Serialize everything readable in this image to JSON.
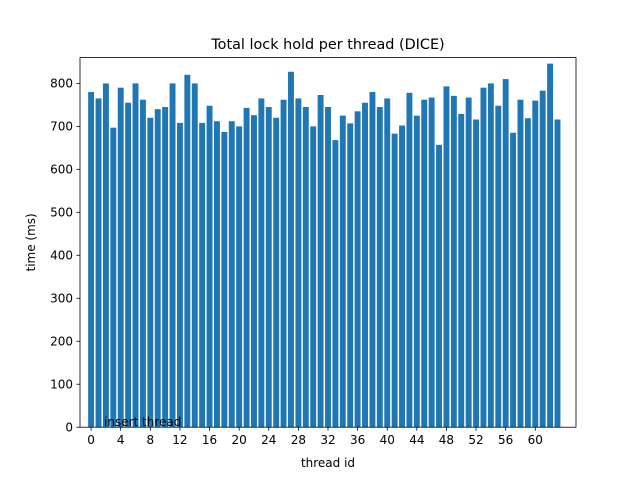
{
  "chart_data": {
    "type": "bar",
    "title": "Total lock hold per thread (DICE)",
    "xlabel": "thread id",
    "ylabel": "time (ms)",
    "annotation": "insert thread",
    "color": "#1f77b4",
    "ylim": [
      0,
      860
    ],
    "xlim": [
      -1.5,
      65.5
    ],
    "xticks": [
      0,
      4,
      8,
      12,
      16,
      20,
      24,
      28,
      32,
      36,
      40,
      44,
      48,
      52,
      56,
      60
    ],
    "yticks": [
      0,
      100,
      200,
      300,
      400,
      500,
      600,
      700,
      800
    ],
    "x": [
      0,
      1,
      2,
      3,
      4,
      5,
      6,
      7,
      8,
      9,
      10,
      11,
      12,
      13,
      14,
      15,
      16,
      17,
      18,
      19,
      20,
      21,
      22,
      23,
      24,
      25,
      26,
      27,
      28,
      29,
      30,
      31,
      32,
      33,
      34,
      35,
      36,
      37,
      38,
      39,
      40,
      41,
      42,
      43,
      44,
      45,
      46,
      47,
      48,
      49,
      50,
      51,
      52,
      53,
      54,
      55,
      56,
      57,
      58,
      59,
      60,
      61,
      62,
      63,
      64
    ],
    "values": [
      780,
      765,
      800,
      697,
      790,
      755,
      800,
      762,
      720,
      740,
      745,
      800,
      708,
      820,
      800,
      708,
      748,
      712,
      687,
      712,
      700,
      743,
      726,
      765,
      745,
      720,
      762,
      827,
      765,
      745,
      700,
      773,
      745,
      668,
      725,
      707,
      735,
      755,
      780,
      745,
      765,
      683,
      702,
      778,
      725,
      762,
      767,
      657,
      793,
      771,
      729,
      767,
      716,
      790,
      800,
      748,
      810,
      685,
      762,
      719,
      760,
      783,
      846,
      716,
      0
    ]
  }
}
